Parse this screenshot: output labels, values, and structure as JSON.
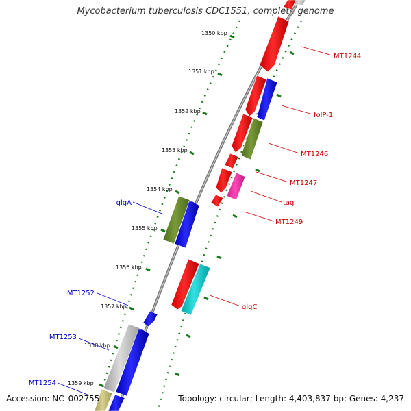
{
  "title": "Mycobacterium tuberculosis CDC1551, complete genome",
  "footer": {
    "accession_label": "Accession:",
    "accession": "NC_002755",
    "topology_label": "Topology:",
    "topology": "circular",
    "length_label": "Length:",
    "length": "4,403,837 bp",
    "genes_label": "Genes:",
    "genes": "4,237"
  },
  "colors": {
    "forward_label": "#cc0000",
    "reverse_label": "#0000cc",
    "backbone": "#808080",
    "tick": "#1a7a1a"
  },
  "ticks": [
    {
      "label": "1350 kbp"
    },
    {
      "label": "1351 kbp"
    },
    {
      "label": "1352 kbp"
    },
    {
      "label": "1353 kbp"
    },
    {
      "label": "1354 kbp"
    },
    {
      "label": "1355 kbp"
    },
    {
      "label": "1356 kbp"
    },
    {
      "label": "1357 kbp"
    },
    {
      "label": "1358 kbp"
    },
    {
      "label": "1359 kbp"
    }
  ],
  "gene_labels": [
    {
      "text": "MT1244",
      "strand": "forward"
    },
    {
      "text": "folP-1",
      "strand": "forward"
    },
    {
      "text": "MT1246",
      "strand": "forward"
    },
    {
      "text": "MT1247",
      "strand": "forward"
    },
    {
      "text": "tag",
      "strand": "forward"
    },
    {
      "text": "MT1249",
      "strand": "forward"
    },
    {
      "text": "glgC",
      "strand": "forward"
    },
    {
      "text": "glgA",
      "strand": "reverse"
    },
    {
      "text": "MT1252",
      "strand": "reverse"
    },
    {
      "text": "MT1253",
      "strand": "reverse"
    },
    {
      "text": "MT1254",
      "strand": "reverse"
    }
  ]
}
